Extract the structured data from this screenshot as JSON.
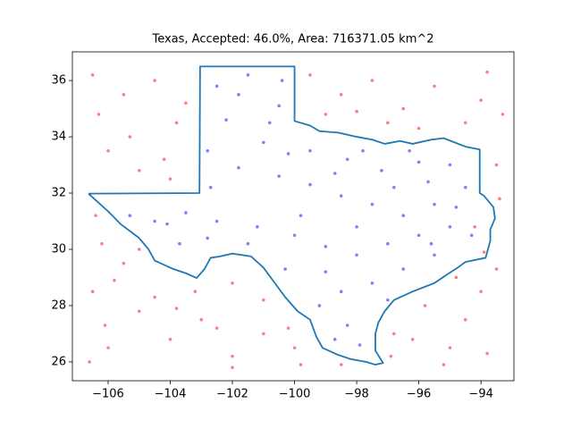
{
  "chart_data": {
    "type": "scatter",
    "title": "Texas, Accepted: 46.0%, Area: 716371.05 km^2",
    "xlim": [
      -107.15,
      -92.94
    ],
    "ylim": [
      25.33,
      37.02
    ],
    "xticks": [
      {
        "value": -106,
        "label": "−106"
      },
      {
        "value": -104,
        "label": "−104"
      },
      {
        "value": -102,
        "label": "−102"
      },
      {
        "value": -100,
        "label": "−100"
      },
      {
        "value": -98,
        "label": "−98"
      },
      {
        "value": -96,
        "label": "−96"
      },
      {
        "value": -94,
        "label": "−94"
      }
    ],
    "yticks": [
      26,
      28,
      30,
      32,
      34,
      36
    ],
    "series": [
      {
        "type": "scatter",
        "color": "#0000ff",
        "x": [
          -102.5,
          -101.5,
          -100.5,
          -102.2,
          -101.0,
          -99.5,
          -98.3,
          -97.2,
          -96.0,
          -95.0,
          -94.5,
          -95.5,
          -96.5,
          -97.5,
          -98.5,
          -99.5,
          -100.5,
          -101.8,
          -102.8,
          -103.5,
          -104.5,
          -105.3,
          -102.5,
          -101.2,
          -100.0,
          -99.0,
          -98.0,
          -97.0,
          -96.0,
          -95.0,
          -94.3,
          -95.5,
          -96.5,
          -97.5,
          -98.5,
          -99.2,
          -98.3,
          -97.9,
          -98.7,
          -100.3,
          -101.5,
          -102.8,
          -103.7,
          -104.1,
          -99.8,
          -98.0,
          -96.8,
          -97.8,
          -100.8,
          -101.8,
          -100.4,
          -102.7,
          -100.2,
          -95.7,
          -94.8,
          -99.0,
          -97.0,
          -95.6,
          -96.3,
          -98.7
        ],
        "values": [
          35.8,
          36.2,
          35.1,
          34.6,
          33.8,
          33.5,
          33.2,
          32.8,
          33.1,
          33.0,
          32.2,
          31.6,
          31.2,
          31.6,
          31.9,
          32.3,
          32.6,
          32.9,
          33.5,
          31.3,
          31.0,
          31.2,
          31.0,
          30.8,
          30.5,
          30.1,
          29.8,
          30.2,
          30.5,
          30.8,
          30.5,
          29.8,
          29.3,
          28.8,
          28.5,
          28.0,
          27.3,
          26.6,
          26.8,
          29.3,
          30.2,
          30.4,
          30.2,
          30.9,
          31.2,
          30.8,
          32.2,
          33.5,
          34.5,
          35.5,
          36.0,
          32.2,
          33.4,
          32.4,
          31.5,
          29.2,
          28.2,
          30.2,
          33.5,
          32.7
        ]
      },
      {
        "type": "scatter",
        "color": "#ff0000",
        "x": [
          -106.5,
          -105.5,
          -104.5,
          -103.8,
          -106.0,
          -105.0,
          -104.0,
          -106.3,
          -105.3,
          -104.2,
          -103.5,
          -99.5,
          -98.5,
          -97.5,
          -96.5,
          -95.5,
          -94.5,
          -93.8,
          -99.0,
          -96.0,
          -94.0,
          -93.5,
          -93.4,
          -93.5,
          -94.0,
          -94.5,
          -95.0,
          -95.8,
          -96.2,
          -93.8,
          -94.8,
          -96.8,
          -96.9,
          -98.5,
          -100.0,
          -101.0,
          -102.0,
          -103.0,
          -104.0,
          -105.0,
          -106.0,
          -106.5,
          -105.5,
          -104.5,
          -103.2,
          -102.0,
          -101.0,
          -100.2,
          -106.2,
          -106.4,
          -105.8,
          -106.1,
          -103.8,
          -102.5,
          -99.8,
          -106.6,
          -95.2,
          -93.9,
          -94.2,
          -93.3,
          -97.0,
          -98.0,
          -102.0,
          -105.0
        ],
        "values": [
          36.2,
          35.5,
          36.0,
          34.5,
          33.5,
          32.8,
          32.5,
          34.8,
          34.0,
          33.2,
          35.2,
          36.2,
          35.5,
          36.0,
          35.0,
          35.8,
          34.5,
          36.3,
          34.8,
          34.3,
          35.3,
          33.0,
          31.8,
          29.3,
          28.5,
          27.5,
          26.5,
          28.0,
          26.8,
          26.3,
          29.0,
          27.0,
          26.2,
          25.9,
          26.5,
          27.0,
          26.2,
          27.5,
          26.8,
          27.8,
          26.5,
          28.5,
          29.5,
          28.3,
          28.5,
          28.8,
          28.2,
          27.2,
          30.2,
          31.2,
          28.9,
          27.3,
          27.9,
          27.2,
          25.9,
          26.0,
          25.9,
          29.9,
          30.8,
          34.8,
          34.5,
          34.9,
          25.8,
          30.0
        ]
      },
      {
        "type": "line",
        "color": "#1f77b4",
        "x": [
          -106.63,
          -103.06,
          -103.04,
          -100.0,
          -100.0,
          -99.5,
          -99.2,
          -98.6,
          -98.0,
          -97.5,
          -97.1,
          -96.6,
          -96.2,
          -95.6,
          -95.2,
          -94.5,
          -94.04,
          -94.04,
          -93.9,
          -93.6,
          -93.55,
          -93.7,
          -93.7,
          -93.85,
          -94.5,
          -94.75,
          -95.1,
          -95.5,
          -96.2,
          -96.8,
          -97.1,
          -97.3,
          -97.4,
          -97.4,
          -97.15,
          -97.4,
          -97.7,
          -98.2,
          -98.6,
          -99.1,
          -99.3,
          -99.5,
          -99.9,
          -100.3,
          -100.7,
          -101.0,
          -101.4,
          -102.0,
          -102.4,
          -102.7,
          -102.9,
          -103.15,
          -103.5,
          -103.9,
          -104.5,
          -104.7,
          -105.0,
          -105.6,
          -106.0,
          -106.4,
          -106.63
        ],
        "values": [
          31.98,
          32.0,
          36.5,
          36.5,
          34.56,
          34.4,
          34.2,
          34.15,
          34.0,
          33.9,
          33.75,
          33.85,
          33.75,
          33.9,
          33.95,
          33.65,
          33.55,
          32.0,
          31.9,
          31.5,
          31.1,
          30.7,
          30.3,
          29.7,
          29.55,
          29.35,
          29.1,
          28.8,
          28.5,
          28.2,
          27.8,
          27.4,
          27.0,
          26.4,
          25.96,
          25.9,
          26.0,
          26.1,
          26.25,
          26.5,
          26.9,
          27.5,
          27.8,
          28.3,
          28.9,
          29.35,
          29.75,
          29.85,
          29.75,
          29.7,
          29.3,
          28.98,
          29.15,
          29.3,
          29.6,
          30.0,
          30.4,
          30.9,
          31.35,
          31.75,
          31.98
        ]
      }
    ]
  }
}
